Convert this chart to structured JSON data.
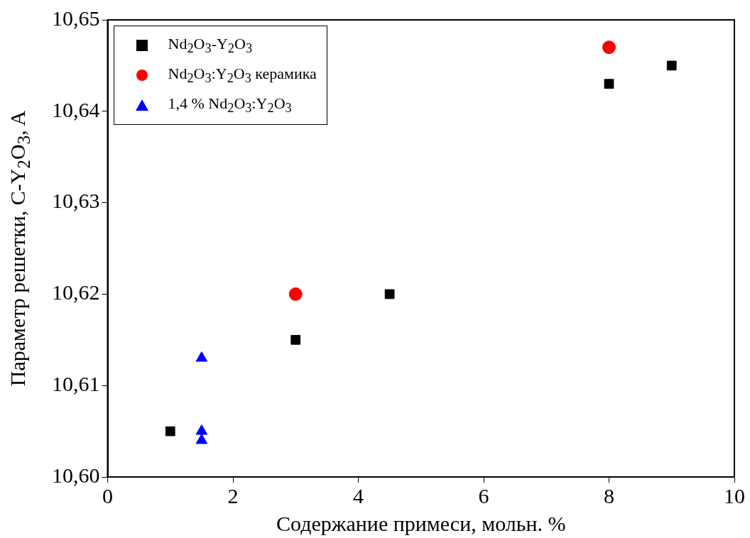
{
  "chart_data": {
    "type": "scatter",
    "xlabel": "Содержание примеси, мольн. %",
    "ylabel": "Параметр решетки, C-Y$_{2}$O$_{3}$, A",
    "xlim": [
      0,
      10
    ],
    "xticks": [
      0,
      2,
      4,
      6,
      8,
      10
    ],
    "ylim": [
      10.6,
      10.65
    ],
    "yticks": [
      {
        "value": 10.6,
        "label": "10,60"
      },
      {
        "value": 10.61,
        "label": "10,61"
      },
      {
        "value": 10.62,
        "label": "10,62"
      },
      {
        "value": 10.63,
        "label": "10,63"
      },
      {
        "value": 10.64,
        "label": "10,64"
      },
      {
        "value": 10.65,
        "label": "10,65"
      }
    ],
    "grid": false,
    "legend": "top left",
    "series": [
      {
        "name": "Nd$_{2}$O$_{3}$-Y$_{2}$O$_{3}$",
        "color": "#000000",
        "marker": "square",
        "x": [
          1,
          3,
          4.5,
          8,
          9
        ],
        "values": [
          10.605,
          10.615,
          10.62,
          10.643,
          10.645
        ]
      },
      {
        "name": "Nd$_{2}$O$_{3}$:Y$_{2}$O$_{3}$ керамика",
        "color": "#ff0000",
        "marker": "circle",
        "x": [
          3,
          8
        ],
        "values": [
          10.62,
          10.647
        ]
      },
      {
        "name": "1,4 % Nd$_{2}$O$_{3}$:Y$_{2}$O$_{3}$",
        "color": "#0000ff",
        "marker": "triangle",
        "x": [
          1.5,
          1.5,
          1.5
        ],
        "values": [
          10.613,
          10.605,
          10.604
        ]
      }
    ]
  }
}
